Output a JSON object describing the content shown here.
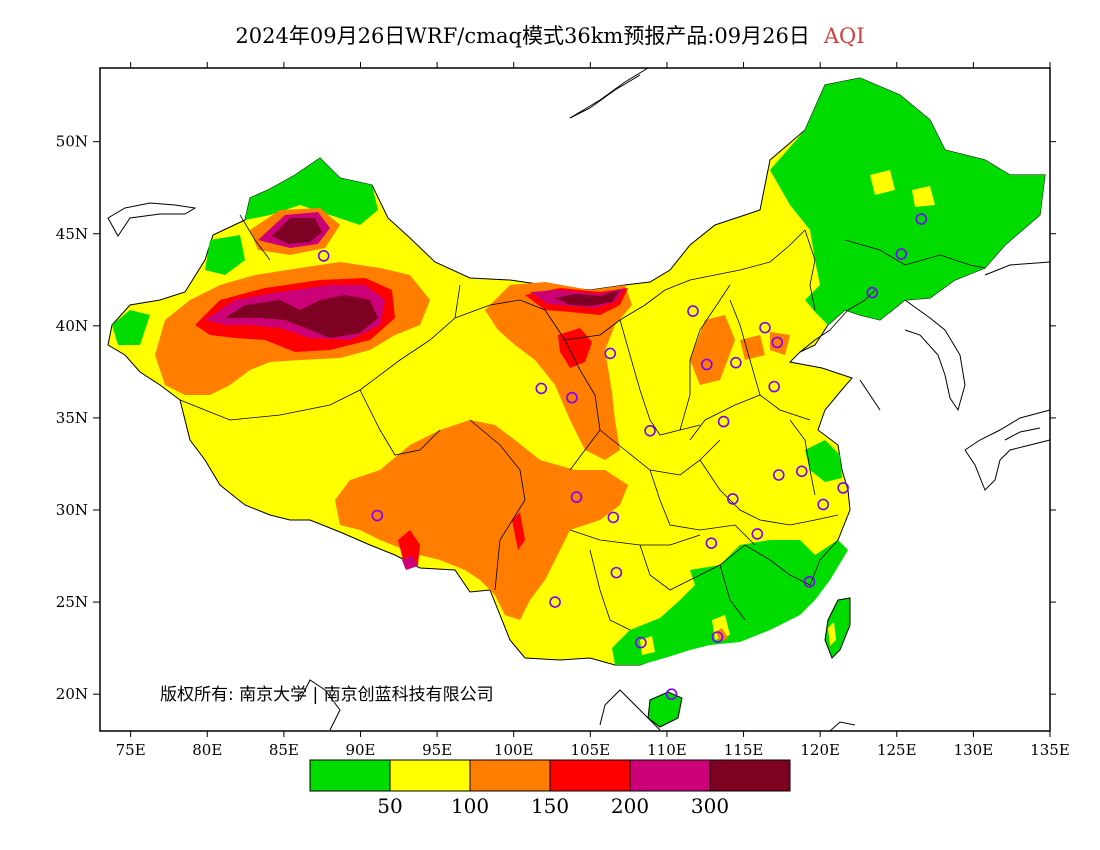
{
  "title": {
    "main": "2024年09月26日WRF/cmaq模式36km预报产品:09月26日",
    "variable": "AQI"
  },
  "copyright": "版权所有: 南京大学 | 南京创蓝科技有限公司",
  "axes": {
    "lon_ticks": [
      "75E",
      "80E",
      "85E",
      "90E",
      "95E",
      "100E",
      "105E",
      "110E",
      "115E",
      "120E",
      "125E",
      "130E",
      "135E"
    ],
    "lon_values": [
      75,
      80,
      85,
      90,
      95,
      100,
      105,
      110,
      115,
      120,
      125,
      130,
      135
    ],
    "lat_ticks": [
      "20N",
      "25N",
      "30N",
      "35N",
      "40N",
      "45N",
      "50N"
    ],
    "lat_values": [
      20,
      25,
      30,
      35,
      40,
      45,
      50
    ],
    "lon_range": [
      73,
      135
    ],
    "lat_range": [
      18,
      54
    ]
  },
  "legend": {
    "colors": [
      "#00dc00",
      "#ffff00",
      "#ff7e00",
      "#ff0000",
      "#cc0077",
      "#7e0023"
    ],
    "breaks": [
      "50",
      "100",
      "150",
      "200",
      "300"
    ]
  },
  "cities": [
    {
      "lon": 87.6,
      "lat": 43.8
    },
    {
      "lon": 91.1,
      "lat": 29.7
    },
    {
      "lon": 101.8,
      "lat": 36.6
    },
    {
      "lon": 103.8,
      "lat": 36.1
    },
    {
      "lon": 106.3,
      "lat": 38.5
    },
    {
      "lon": 111.7,
      "lat": 40.8
    },
    {
      "lon": 116.4,
      "lat": 39.9
    },
    {
      "lon": 117.2,
      "lat": 39.1
    },
    {
      "lon": 112.6,
      "lat": 37.9
    },
    {
      "lon": 114.5,
      "lat": 38.0
    },
    {
      "lon": 117.0,
      "lat": 36.7
    },
    {
      "lon": 108.9,
      "lat": 34.3
    },
    {
      "lon": 113.7,
      "lat": 34.8
    },
    {
      "lon": 104.1,
      "lat": 30.7
    },
    {
      "lon": 106.5,
      "lat": 29.6
    },
    {
      "lon": 114.3,
      "lat": 30.6
    },
    {
      "lon": 117.3,
      "lat": 31.9
    },
    {
      "lon": 118.8,
      "lat": 32.1
    },
    {
      "lon": 121.5,
      "lat": 31.2
    },
    {
      "lon": 120.2,
      "lat": 30.3
    },
    {
      "lon": 112.9,
      "lat": 28.2
    },
    {
      "lon": 115.9,
      "lat": 28.7
    },
    {
      "lon": 106.7,
      "lat": 26.6
    },
    {
      "lon": 102.7,
      "lat": 25.0
    },
    {
      "lon": 108.3,
      "lat": 22.8
    },
    {
      "lon": 113.3,
      "lat": 23.1
    },
    {
      "lon": 119.3,
      "lat": 26.1
    },
    {
      "lon": 110.3,
      "lat": 20.0
    },
    {
      "lon": 123.4,
      "lat": 41.8
    },
    {
      "lon": 125.3,
      "lat": 43.9
    },
    {
      "lon": 126.6,
      "lat": 45.8
    }
  ]
}
